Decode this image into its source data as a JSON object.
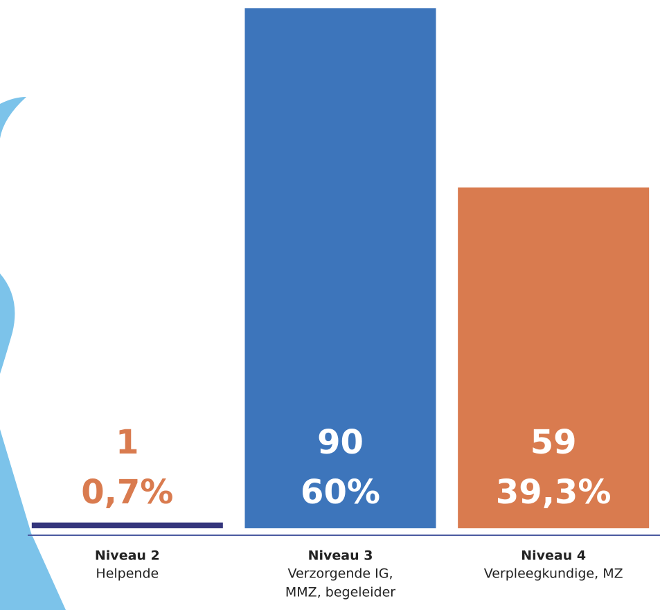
{
  "chart_data": {
    "type": "bar",
    "categories": [
      "Niveau 2",
      "Niveau 3",
      "Niveau 4"
    ],
    "category_descriptions": [
      [
        "Helpende"
      ],
      [
        "Verzorgende IG,",
        "MMZ, begeleider"
      ],
      [
        "Verpleegkundige, MZ"
      ]
    ],
    "values": [
      1,
      90,
      59
    ],
    "colors": [
      "#34357c",
      "#3d75bb",
      "#d97b4f"
    ],
    "shares": [
      0.7,
      60,
      39.3
    ],
    "share_labels": [
      "0,7%",
      "60%",
      "39,3%"
    ],
    "ylim": [
      0,
      90
    ]
  }
}
